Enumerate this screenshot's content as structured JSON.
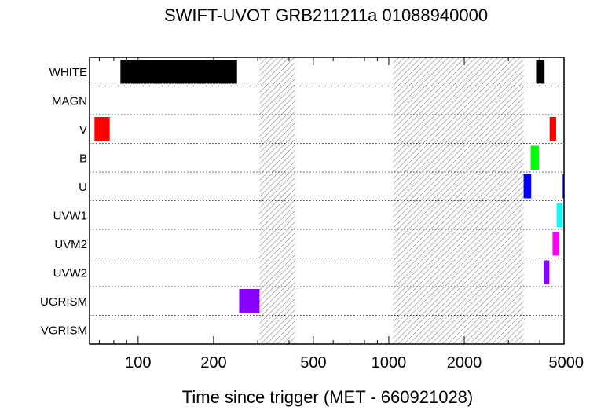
{
  "chart_data": {
    "type": "timeline",
    "title": "SWIFT-UVOT GRB211211a 01088940000",
    "xlabel": "Time since trigger (MET - 660921028)",
    "xscale": "log",
    "xlim": [
      64,
      5000
    ],
    "xticks": [
      100,
      200,
      500,
      1000,
      2000,
      5000
    ],
    "xtick_labels": [
      "100",
      "200",
      "500",
      "1000",
      "2000",
      "5000"
    ],
    "rows": [
      "WHITE",
      "MAGN",
      "V",
      "B",
      "U",
      "UVW1",
      "UVM2",
      "UVW2",
      "UGRISM",
      "VGRISM"
    ],
    "row_colors": {
      "WHITE": "#000000",
      "V": "#ff0000",
      "B": "#00ff00",
      "U": "#0000ff",
      "UVW1": "#00ffff",
      "UVM2": "#ff00ff",
      "UVW2": "#8800ff",
      "UGRISM": "#8800ff"
    },
    "exposures": [
      {
        "filter": "WHITE",
        "start": 85,
        "end": 248
      },
      {
        "filter": "WHITE",
        "start": 3870,
        "end": 4180
      },
      {
        "filter": "V",
        "start": 67,
        "end": 77
      },
      {
        "filter": "V",
        "start": 4380,
        "end": 4650
      },
      {
        "filter": "B",
        "start": 3680,
        "end": 3970
      },
      {
        "filter": "U",
        "start": 3450,
        "end": 3700
      },
      {
        "filter": "U",
        "start": 4940,
        "end": 5000
      },
      {
        "filter": "UVW1",
        "start": 4680,
        "end": 4940
      },
      {
        "filter": "UVM2",
        "start": 4500,
        "end": 4770
      },
      {
        "filter": "UVW2",
        "start": 4150,
        "end": 4370
      },
      {
        "filter": "UGRISM",
        "start": 253,
        "end": 305
      }
    ],
    "gaps": [
      {
        "start": 305,
        "end": 425
      },
      {
        "start": 1042,
        "end": 3450
      }
    ]
  }
}
